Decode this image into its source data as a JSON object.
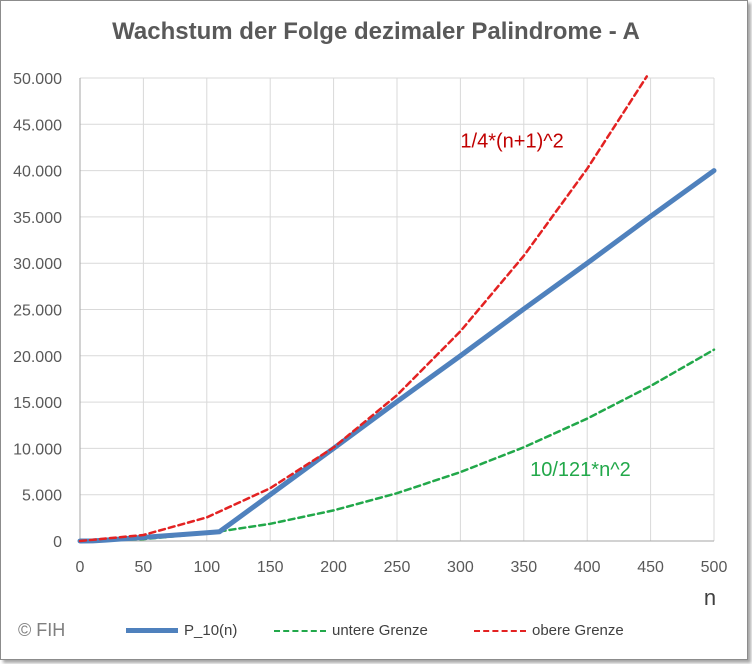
{
  "title": "Wachstum der Folge dezimaler Palindrome - A",
  "credit": "© FIH",
  "chart_data": {
    "type": "line",
    "title": "Wachstum der Folge dezimaler Palindrome - A",
    "xlabel": "n",
    "ylabel": "",
    "xlim": [
      0,
      500
    ],
    "ylim": [
      0,
      50000
    ],
    "x_ticks": [
      0,
      50,
      100,
      150,
      200,
      250,
      300,
      350,
      400,
      450,
      500
    ],
    "x_tick_labels": [
      "0",
      "50",
      "100",
      "150",
      "200",
      "250",
      "300",
      "350",
      "400",
      "450",
      "500"
    ],
    "y_ticks": [
      0,
      5000,
      10000,
      15000,
      20000,
      25000,
      30000,
      35000,
      40000,
      45000,
      50000
    ],
    "y_tick_labels": [
      "0",
      "5.000",
      "10.000",
      "15.000",
      "20.000",
      "25.000",
      "30.000",
      "35.000",
      "40.000",
      "45.000",
      "50.000"
    ],
    "grid": true,
    "legend_position": "bottom",
    "series": [
      {
        "name": "P_10(n)",
        "style": "solid",
        "color": "#4f81bd",
        "x": [
          0,
          10,
          20,
          50,
          80,
          100,
          110,
          120,
          150,
          200,
          250,
          300,
          350,
          400,
          450,
          500
        ],
        "y": [
          0,
          9,
          99,
          393,
          696,
          898,
          999,
          2002,
          5005,
          10001,
          15051,
          20002,
          25052,
          30003,
          35053,
          40004
        ]
      },
      {
        "name": "untere Grenze",
        "style": "dashed",
        "color": "#22a84a",
        "x": [
          0,
          50,
          100,
          150,
          200,
          250,
          300,
          350,
          400,
          450,
          500
        ],
        "y": [
          0,
          207,
          826,
          1860,
          3306,
          5165,
          7438,
          10124,
          13223,
          16736,
          20661
        ]
      },
      {
        "name": "obere Grenze",
        "style": "dashed",
        "color": "#e32222",
        "x": [
          0,
          50,
          100,
          150,
          200,
          250,
          300,
          350,
          400,
          447
        ],
        "y": [
          0,
          650,
          2550,
          5700,
          10100,
          15750,
          22650,
          30800,
          40200,
          50176
        ]
      }
    ],
    "annotations": [
      {
        "text": "1/4*(n+1)^2",
        "x": 300,
        "y": 42500,
        "color": "#c00000"
      },
      {
        "text": "10/121*n^2",
        "x": 355,
        "y": 7000,
        "color": "#22a84a"
      }
    ]
  }
}
